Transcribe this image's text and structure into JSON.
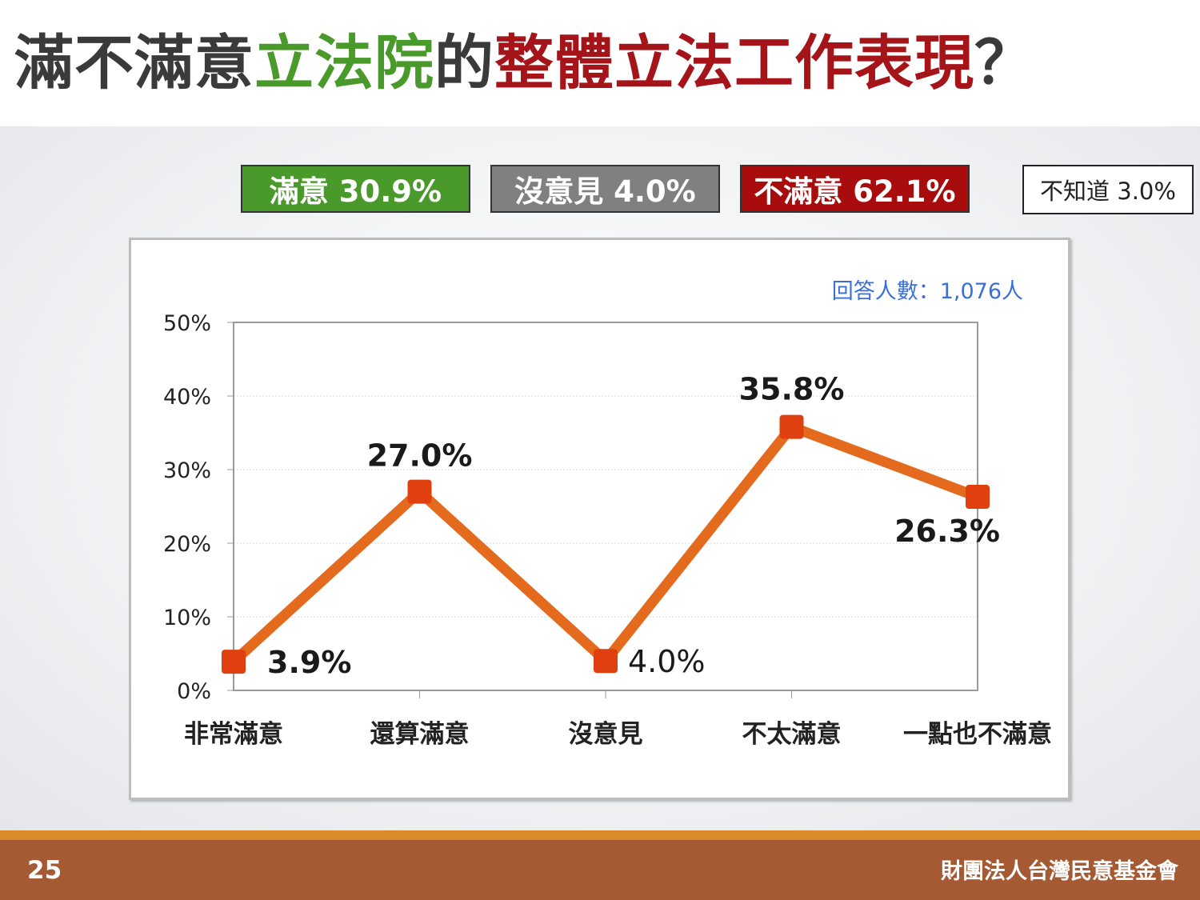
{
  "title": {
    "part1": "滿不滿意",
    "part2": "立法院",
    "part3": "的",
    "part4": "整體立法工作表現",
    "part5": "？"
  },
  "summary": {
    "satisfied": "滿意 30.9%",
    "no_opinion": "沒意見 4.0%",
    "dissatisfied": "不滿意 62.1%",
    "dont_know": "不知道 3.0%"
  },
  "colors": {
    "satisfied": "#4a9a2b",
    "no_opinion": "#808080",
    "dissatisfied": "#a80c0c",
    "line": "#e46a1e",
    "marker": "#e0400f",
    "respondents_text": "#3a6fd8"
  },
  "respondents": "回答人數：1,076人",
  "chart_data": {
    "type": "line",
    "categories": [
      "非常滿意",
      "還算滿意",
      "沒意見",
      "不太滿意",
      "一點也不滿意"
    ],
    "series": [
      {
        "values": [
          3.9,
          27.0,
          4.0,
          35.8,
          26.3
        ]
      }
    ],
    "data_labels": [
      "3.9%",
      "27.0%",
      "4.0%",
      "35.8%",
      "26.3%"
    ],
    "y_ticks": [
      "0%",
      "10%",
      "20%",
      "30%",
      "40%",
      "50%"
    ],
    "ylim": [
      0,
      50
    ],
    "grid": true,
    "legend": "none"
  },
  "footer": {
    "page_number": "25",
    "organization": "財團法人台灣民意基金會"
  }
}
